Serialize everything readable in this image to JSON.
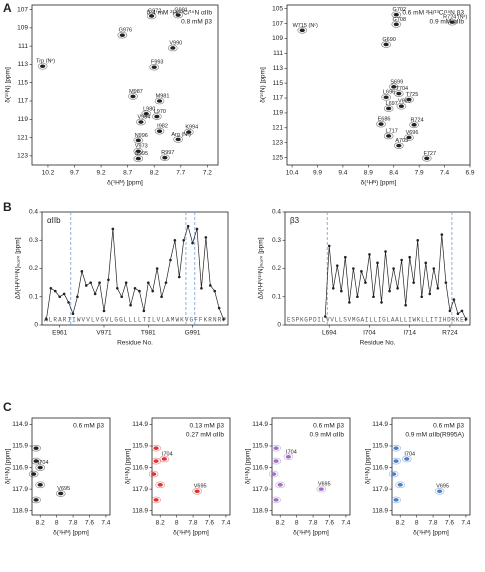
{
  "panel_labels": [
    "A",
    "B",
    "C"
  ],
  "chart_data": [
    {
      "type": "spectrum",
      "color": "#222",
      "xlim": [
        10.5,
        7.0
      ],
      "ylim": [
        106.5,
        124
      ],
      "xticks": [
        10.2,
        9.7,
        9.2,
        8.7,
        8.2,
        7.7,
        7.2
      ],
      "yticks": [
        107,
        109,
        111,
        113,
        115,
        117,
        119,
        121,
        123
      ],
      "xlabel": "δ(¹Hᴺ) [ppm]",
      "ylabel": "δ(¹⁵N) [ppm]",
      "annotations": [
        "0.4 mM ²H/¹³C/¹⁵N αIIb",
        "0.8 mM β3"
      ],
      "peaks": [
        {
          "label": "G972",
          "x": 8.25,
          "y": 107.7
        },
        {
          "label": "G991",
          "x": 7.75,
          "y": 107.6
        },
        {
          "label": "G976",
          "x": 8.8,
          "y": 109.8
        },
        {
          "label": "V990",
          "x": 7.85,
          "y": 111.2
        },
        {
          "label": "Trp (Nᵋ)",
          "x": 10.3,
          "y": 113.2
        },
        {
          "label": "F993",
          "x": 8.2,
          "y": 113.3
        },
        {
          "label": "M987",
          "x": 8.6,
          "y": 116.5
        },
        {
          "label": "M981",
          "x": 8.1,
          "y": 117.0
        },
        {
          "label": "L980",
          "x": 8.35,
          "y": 118.4
        },
        {
          "label": "L970",
          "x": 8.15,
          "y": 118.7
        },
        {
          "label": "V984",
          "x": 8.45,
          "y": 119.3
        },
        {
          "label": "I982",
          "x": 8.1,
          "y": 120.3
        },
        {
          "label": "K994",
          "x": 7.55,
          "y": 120.4
        },
        {
          "label": "Arg (Nᵋ)",
          "x": 7.75,
          "y": 121.2
        },
        {
          "label": "N996",
          "x": 8.5,
          "y": 121.3
        },
        {
          "label": "V973",
          "x": 8.5,
          "y": 122.5
        },
        {
          "label": "G995",
          "x": 8.5,
          "y": 123.3
        },
        {
          "label": "R997",
          "x": 8.0,
          "y": 123.2
        }
      ]
    },
    {
      "type": "spectrum",
      "color": "#222",
      "xlim": [
        10.5,
        6.9
      ],
      "ylim": [
        104.5,
        126
      ],
      "xticks": [
        10.4,
        9.9,
        9.4,
        8.9,
        8.4,
        7.9,
        7.4,
        6.9
      ],
      "yticks": [
        105,
        107,
        109,
        111,
        113,
        115,
        117,
        119,
        121,
        123,
        125
      ],
      "xlabel": "δ(¹Hᴺ) [ppm]",
      "ylabel": "δ(¹⁵N) [ppm]",
      "annotations": [
        "0.6 mM ²H/¹³C/¹⁵N β3",
        "0.9 mM αIIb"
      ],
      "peaks": [
        {
          "label": "G702",
          "x": 8.35,
          "y": 105.8
        },
        {
          "label": "G708",
          "x": 8.35,
          "y": 107.1
        },
        {
          "label": "W715 (Nᵋ)",
          "x": 10.2,
          "y": 107.9
        },
        {
          "label": "R724 (Nᵋ)",
          "x": 7.25,
          "y": 106.8
        },
        {
          "label": "G690",
          "x": 8.55,
          "y": 109.8
        },
        {
          "label": "S699",
          "x": 8.4,
          "y": 115.5
        },
        {
          "label": "T704",
          "x": 8.3,
          "y": 116.4
        },
        {
          "label": "L696",
          "x": 8.55,
          "y": 116.9
        },
        {
          "label": "T725",
          "x": 8.1,
          "y": 117.2
        },
        {
          "label": "V695",
          "x": 8.25,
          "y": 118.1
        },
        {
          "label": "L697",
          "x": 8.5,
          "y": 118.4
        },
        {
          "label": "E686",
          "x": 8.65,
          "y": 120.5
        },
        {
          "label": "R724",
          "x": 8.0,
          "y": 120.6
        },
        {
          "label": "L717",
          "x": 8.5,
          "y": 122.1
        },
        {
          "label": "V696",
          "x": 8.1,
          "y": 122.3
        },
        {
          "label": "A703",
          "x": 8.3,
          "y": 123.4
        },
        {
          "label": "F727",
          "x": 7.75,
          "y": 125.1
        }
      ]
    },
    {
      "type": "line",
      "title": "αIIb",
      "color": "#222",
      "xlim": [
        957,
        999
      ],
      "ylim": [
        0,
        0.4
      ],
      "yticks": [
        0,
        0.1,
        0.2,
        0.3,
        0.4
      ],
      "xticks": [
        {
          "value": 961,
          "label": "E961"
        },
        {
          "value": 971,
          "label": "V971"
        },
        {
          "value": 981,
          "label": "T981"
        },
        {
          "value": 991,
          "label": "G991"
        }
      ],
      "xlabel": "Residue No.",
      "ylabel": "Δδ(¹Hᴺ/¹⁵N)ₙₒᵣₘ [ppm]",
      "sequence": "ALRARIIWVVLVGVLGGLLLLTILVLAMWKVGFFKRNRP",
      "dashed_lines": [
        963.5,
        989.5,
        991.5
      ],
      "x": [
        958,
        959,
        960,
        961,
        962,
        963,
        964,
        965,
        966,
        967,
        968,
        969,
        970,
        971,
        972,
        973,
        974,
        975,
        976,
        977,
        978,
        979,
        980,
        981,
        982,
        983,
        984,
        985,
        986,
        987,
        988,
        989,
        990,
        991,
        992,
        993,
        994,
        995,
        996,
        997,
        998
      ],
      "values": [
        0.02,
        0.13,
        0.12,
        0.1,
        0.11,
        0.08,
        0.04,
        0.1,
        0.19,
        0.14,
        0.15,
        0.11,
        0.15,
        0.05,
        0.16,
        0.34,
        0.13,
        0.1,
        0.15,
        0.07,
        0.13,
        0.12,
        0.05,
        0.15,
        0.12,
        0.2,
        0.1,
        0.15,
        0.23,
        0.3,
        0.17,
        0.3,
        0.35,
        0.29,
        0.34,
        0.13,
        0.31,
        0.14,
        0.12,
        0.06,
        0.02
      ]
    },
    {
      "type": "line",
      "title": "β3",
      "color": "#222",
      "xlim": [
        683,
        729
      ],
      "ylim": [
        0,
        0.4
      ],
      "yticks": [
        0,
        0.1,
        0.2,
        0.3,
        0.4
      ],
      "xticks": [
        {
          "value": 694,
          "label": "L694"
        },
        {
          "value": 704,
          "label": "I704"
        },
        {
          "value": 714,
          "label": "I714"
        },
        {
          "value": 724,
          "label": "R724"
        }
      ],
      "xlabel": "Residue No.",
      "ylabel": "Δδ(¹Hᴺ/¹⁵N)ₙₒᵣₘ [ppm]",
      "sequence": "ESPKGPDILVVLLSVMGAILLIGLAALLIWKLLITIHDRKEF",
      "dashed_lines": [
        693.5,
        724.5
      ],
      "x": [
        684,
        685,
        686,
        687,
        688,
        689,
        690,
        691,
        692,
        693,
        694,
        695,
        696,
        697,
        698,
        699,
        700,
        701,
        702,
        703,
        704,
        705,
        706,
        707,
        708,
        709,
        710,
        711,
        712,
        713,
        714,
        715,
        716,
        717,
        718,
        719,
        720,
        721,
        722,
        723,
        724,
        725,
        726,
        727,
        728
      ],
      "values": [
        null,
        null,
        null,
        null,
        null,
        null,
        null,
        null,
        null,
        0.03,
        0.28,
        0.13,
        0.21,
        0.12,
        0.24,
        0.08,
        0.2,
        0.1,
        0.19,
        0.15,
        0.25,
        0.1,
        0.22,
        0.08,
        0.26,
        0.12,
        0.2,
        0.13,
        0.23,
        0.07,
        0.24,
        0.15,
        0.3,
        0.1,
        0.22,
        0.11,
        0.2,
        0.13,
        0.32,
        0.15,
        0.05,
        0.09,
        0.04,
        0.05,
        0.02
      ]
    },
    {
      "type": "spectrum",
      "color": "#222",
      "xlim": [
        8.3,
        7.35
      ],
      "ylim": [
        114.6,
        119.1
      ],
      "xticks": [
        8.2,
        8.0,
        7.8,
        7.6,
        7.4
      ],
      "yticks": [
        114.9,
        115.9,
        116.9,
        117.9,
        118.9
      ],
      "xlabel": "δ(¹Hᴺ) [ppm]",
      "ylabel": "δ(¹⁵N) [ppm]",
      "annotations": [
        "0.6 mM β3"
      ],
      "peaks": [
        {
          "label": null,
          "x": 8.25,
          "y": 116.0
        },
        {
          "label": null,
          "x": 8.25,
          "y": 116.6
        },
        {
          "label": null,
          "x": 8.28,
          "y": 117.2
        },
        {
          "label": null,
          "x": 8.2,
          "y": 117.7
        },
        {
          "label": null,
          "x": 8.25,
          "y": 118.4
        },
        {
          "label": "I704",
          "x": 8.2,
          "y": 116.9
        },
        {
          "label": "V695",
          "x": 7.95,
          "y": 118.1
        }
      ]
    },
    {
      "type": "spectrum",
      "color": "#d33",
      "xlim": [
        8.3,
        7.35
      ],
      "ylim": [
        114.6,
        119.1
      ],
      "xticks": [
        8.2,
        8.0,
        7.8,
        7.6,
        7.4
      ],
      "yticks": [
        114.9,
        115.9,
        116.9,
        117.9,
        118.9
      ],
      "xlabel": "δ(¹Hᴺ) [ppm]",
      "ylabel": "δ(¹⁵N) [ppm]",
      "annotations": [
        "0.13 mM β3",
        "0.27 mM αIIb"
      ],
      "peaks": [
        {
          "label": null,
          "x": 8.25,
          "y": 116.0
        },
        {
          "label": null,
          "x": 8.25,
          "y": 116.6
        },
        {
          "label": null,
          "x": 8.28,
          "y": 117.2
        },
        {
          "label": null,
          "x": 8.2,
          "y": 117.7
        },
        {
          "label": null,
          "x": 8.25,
          "y": 118.4
        },
        {
          "label": "I704",
          "x": 8.15,
          "y": 116.5
        },
        {
          "label": "V695",
          "x": 7.75,
          "y": 118.0
        }
      ]
    },
    {
      "type": "spectrum",
      "color": "#a070c0",
      "xlim": [
        8.3,
        7.35
      ],
      "ylim": [
        114.6,
        119.1
      ],
      "xticks": [
        8.2,
        8.0,
        7.8,
        7.6,
        7.4
      ],
      "yticks": [
        114.9,
        115.9,
        116.9,
        117.9,
        118.9
      ],
      "xlabel": "δ(¹Hᴺ) [ppm]",
      "ylabel": "δ(¹⁵N) [ppm]",
      "annotations": [
        "0.6 mM β3",
        "0.9 mM αIIb"
      ],
      "peaks": [
        {
          "label": null,
          "x": 8.25,
          "y": 116.0
        },
        {
          "label": null,
          "x": 8.25,
          "y": 116.6
        },
        {
          "label": null,
          "x": 8.28,
          "y": 117.2
        },
        {
          "label": null,
          "x": 8.2,
          "y": 117.7
        },
        {
          "label": null,
          "x": 8.25,
          "y": 118.4
        },
        {
          "label": "I704",
          "x": 8.1,
          "y": 116.4
        },
        {
          "label": "V695",
          "x": 7.7,
          "y": 117.9
        }
      ]
    },
    {
      "type": "spectrum",
      "color": "#4a7fc8",
      "xlim": [
        8.3,
        7.35
      ],
      "ylim": [
        114.6,
        119.1
      ],
      "xticks": [
        8.2,
        8.0,
        7.8,
        7.6,
        7.4
      ],
      "yticks": [
        114.9,
        115.9,
        116.9,
        117.9,
        118.9
      ],
      "xlabel": "δ(¹Hᴺ) [ppm]",
      "ylabel": "δ(¹⁵N) [ppm]",
      "annotations": [
        "0.6 mM β3",
        "0.9 mM αIIb(R995A)"
      ],
      "peaks": [
        {
          "label": null,
          "x": 8.25,
          "y": 116.0
        },
        {
          "label": null,
          "x": 8.25,
          "y": 116.6
        },
        {
          "label": null,
          "x": 8.28,
          "y": 117.2
        },
        {
          "label": null,
          "x": 8.2,
          "y": 117.7
        },
        {
          "label": null,
          "x": 8.25,
          "y": 118.4
        },
        {
          "label": "I704",
          "x": 8.12,
          "y": 116.5
        },
        {
          "label": "V695",
          "x": 7.72,
          "y": 118.0
        }
      ]
    }
  ]
}
